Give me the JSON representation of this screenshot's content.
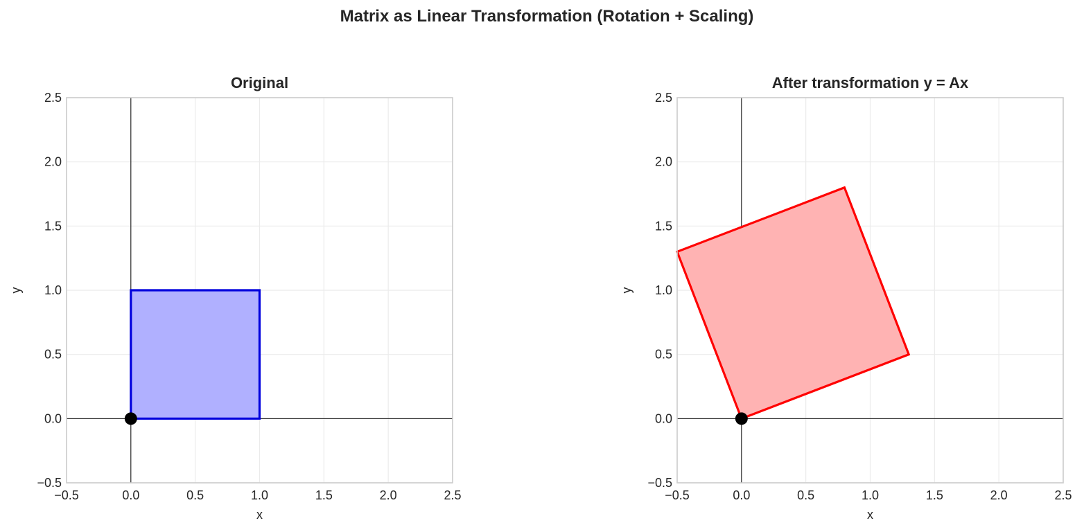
{
  "figure": {
    "suptitle": "Matrix as Linear Transformation (Rotation + Scaling)"
  },
  "chart_data": [
    {
      "type": "area",
      "title": "Original",
      "xlabel": "x",
      "ylabel": "y",
      "xlim": [
        -0.5,
        2.5
      ],
      "ylim": [
        -0.5,
        2.5
      ],
      "xticks": [
        "−0.5",
        "0.0",
        "0.5",
        "1.0",
        "1.5",
        "2.0",
        "2.5"
      ],
      "yticks": [
        "−0.5",
        "0.0",
        "0.5",
        "1.0",
        "1.5",
        "2.0",
        "2.5"
      ],
      "grid": true,
      "polygon": [
        [
          0,
          0
        ],
        [
          1,
          0
        ],
        [
          1,
          1
        ],
        [
          0,
          1
        ]
      ],
      "fill_color": "#b0b0ff",
      "edge_color": "#0000dd",
      "origin_point": [
        0,
        0
      ],
      "origin_color": "#000000"
    },
    {
      "type": "area",
      "title": "After transformation y = Ax",
      "xlabel": "x",
      "ylabel": "y",
      "xlim": [
        -0.5,
        2.5
      ],
      "ylim": [
        -0.5,
        2.5
      ],
      "xticks": [
        "−0.5",
        "0.0",
        "0.5",
        "1.0",
        "1.5",
        "2.0",
        "2.5"
      ],
      "yticks": [
        "−0.5",
        "0.0",
        "0.5",
        "1.0",
        "1.5",
        "2.0",
        "2.5"
      ],
      "grid": true,
      "polygon": [
        [
          0,
          0
        ],
        [
          1.3,
          0.5
        ],
        [
          0.8,
          1.8
        ],
        [
          -0.5,
          1.3
        ]
      ],
      "fill_color": "#ffb3b3",
      "edge_color": "#ff0000",
      "origin_point": [
        0,
        0
      ],
      "origin_color": "#000000"
    }
  ]
}
